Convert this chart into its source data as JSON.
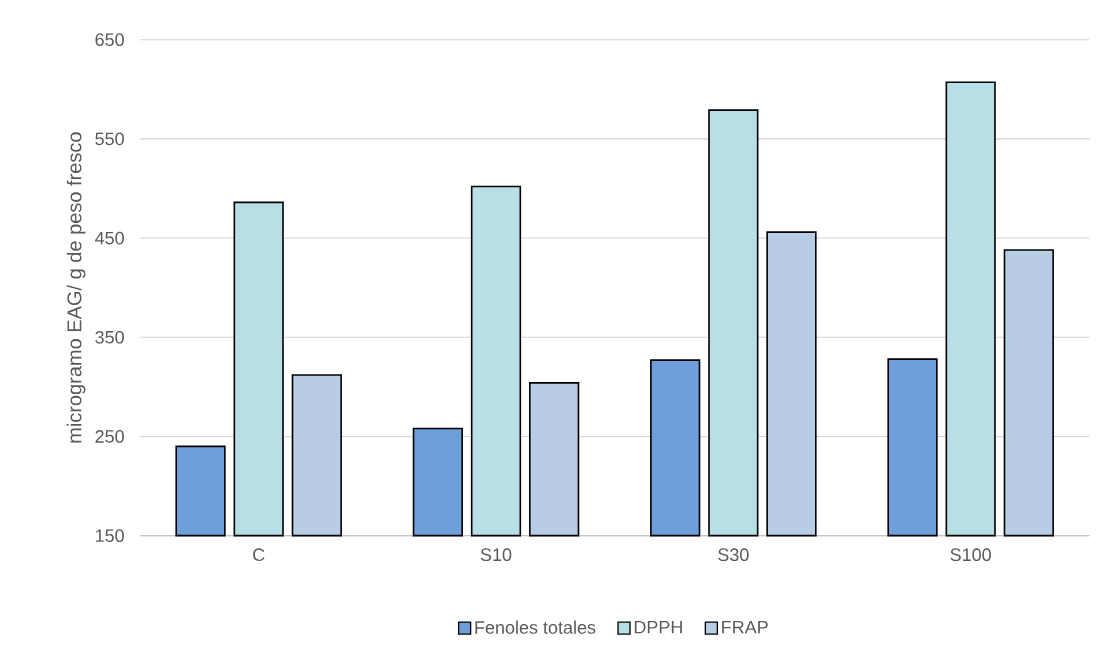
{
  "chart_data": {
    "type": "bar",
    "ylabel": "microgramo EAG/ g de peso fresco",
    "categories": [
      "C",
      "S10",
      "S30",
      "S100"
    ],
    "series": [
      {
        "name": "Fenoles totales",
        "color": "#6f9fda",
        "values": [
          240,
          258,
          327,
          328
        ]
      },
      {
        "name": "DPPH",
        "color": "#b8dfe6",
        "values": [
          486,
          502,
          579,
          607
        ]
      },
      {
        "name": "FRAP",
        "color": "#b8cce4",
        "values": [
          312,
          304,
          456,
          438
        ]
      }
    ],
    "ylim": [
      150,
      650
    ],
    "yticks": [
      150,
      250,
      350,
      450,
      550,
      650
    ],
    "grid": "y",
    "legend": "bottom"
  }
}
